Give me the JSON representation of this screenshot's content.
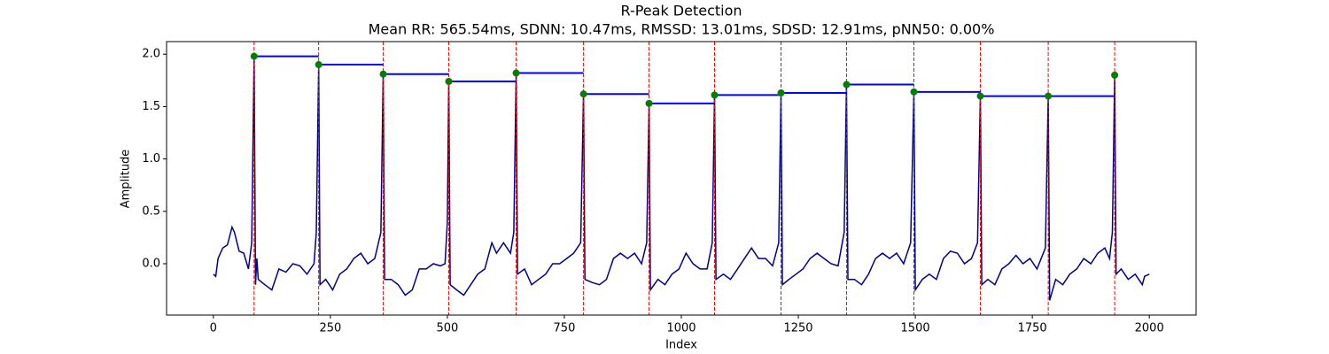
{
  "chart_data": {
    "type": "line",
    "title": "R-Peak Detection",
    "subtitle": "Mean RR: 565.54ms, SDNN: 10.47ms, RMSSD: 13.01ms, SDSD: 12.91ms, pNN50: 0.00%",
    "x_label": "Index",
    "y_label": "Amplitude",
    "xlim": [
      -100,
      2100
    ],
    "ylim": [
      -0.49,
      2.12
    ],
    "xticks": [
      0,
      250,
      500,
      750,
      1000,
      1250,
      1500,
      1750,
      2000
    ],
    "yticks": [
      {
        "value": 0,
        "label": "0.0"
      },
      {
        "value": 0.5,
        "label": "0.5"
      },
      {
        "value": 1,
        "label": "1.0"
      },
      {
        "value": 1.5,
        "label": "1.5"
      },
      {
        "value": 2,
        "label": "2.0"
      }
    ],
    "signal": {
      "color": "#00008b",
      "x": [
        0,
        5,
        10,
        20,
        30,
        40,
        45,
        55,
        65,
        75,
        82,
        87,
        90,
        93,
        96,
        110,
        125,
        140,
        155,
        170,
        185,
        200,
        215,
        220,
        225,
        228,
        240,
        255,
        270,
        285,
        300,
        315,
        330,
        345,
        358,
        363,
        366,
        380,
        395,
        410,
        425,
        440,
        455,
        470,
        485,
        495,
        500,
        503,
        506,
        520,
        535,
        550,
        565,
        580,
        595,
        605,
        620,
        635,
        642,
        647,
        650,
        665,
        680,
        695,
        710,
        725,
        740,
        755,
        770,
        785,
        791,
        794,
        810,
        825,
        840,
        855,
        870,
        885,
        900,
        915,
        926,
        931,
        934,
        950,
        965,
        980,
        995,
        1010,
        1025,
        1040,
        1055,
        1066,
        1071,
        1074,
        1090,
        1105,
        1120,
        1135,
        1150,
        1165,
        1180,
        1195,
        1208,
        1213,
        1216,
        1230,
        1245,
        1260,
        1275,
        1290,
        1305,
        1320,
        1335,
        1348,
        1353,
        1356,
        1370,
        1385,
        1400,
        1415,
        1430,
        1445,
        1460,
        1475,
        1490,
        1497,
        1500,
        1515,
        1530,
        1545,
        1560,
        1575,
        1590,
        1605,
        1620,
        1633,
        1639,
        1642,
        1655,
        1670,
        1685,
        1700,
        1715,
        1730,
        1745,
        1760,
        1778,
        1784,
        1787,
        1800,
        1815,
        1830,
        1845,
        1860,
        1875,
        1890,
        1905,
        1915,
        1921,
        1926,
        1929,
        1940,
        1955,
        1970,
        1985,
        1990,
        2000
      ],
      "values": [
        -0.1,
        -0.12,
        0.05,
        0.15,
        0.18,
        0.35,
        0.3,
        0.12,
        0.1,
        -0.05,
        0.2,
        1.98,
        -0.2,
        0.05,
        -0.15,
        -0.2,
        -0.25,
        -0.05,
        -0.08,
        0.0,
        -0.02,
        -0.1,
        0.0,
        0.3,
        1.9,
        -0.2,
        -0.15,
        -0.25,
        -0.1,
        -0.05,
        0.05,
        0.1,
        0.0,
        0.05,
        0.3,
        1.81,
        -0.15,
        -0.15,
        -0.2,
        -0.3,
        -0.25,
        -0.05,
        -0.05,
        0.0,
        -0.02,
        0.0,
        0.4,
        1.74,
        -0.2,
        -0.25,
        -0.3,
        -0.2,
        -0.1,
        -0.05,
        0.2,
        0.1,
        0.2,
        0.1,
        0.3,
        1.82,
        -0.1,
        -0.05,
        -0.2,
        -0.15,
        -0.1,
        0.0,
        0.0,
        0.05,
        0.1,
        0.2,
        1.62,
        -0.15,
        -0.18,
        -0.2,
        -0.15,
        0.05,
        0.1,
        0.05,
        0.1,
        0.0,
        0.2,
        1.53,
        -0.25,
        -0.15,
        -0.2,
        -0.1,
        -0.05,
        0.1,
        0.0,
        -0.05,
        -0.05,
        0.2,
        1.61,
        -0.15,
        -0.1,
        -0.15,
        -0.05,
        0.05,
        0.15,
        0.05,
        0.05,
        -0.02,
        0.2,
        1.63,
        -0.2,
        -0.15,
        -0.1,
        -0.05,
        0.05,
        0.1,
        0.05,
        0.0,
        -0.02,
        0.3,
        1.71,
        -0.15,
        -0.15,
        -0.2,
        -0.1,
        0.05,
        0.1,
        0.05,
        0.1,
        0.0,
        0.2,
        1.64,
        -0.25,
        -0.15,
        -0.1,
        -0.15,
        0.05,
        0.12,
        0.1,
        0.0,
        0.05,
        0.2,
        1.6,
        -0.2,
        -0.15,
        -0.2,
        -0.05,
        0.0,
        0.08,
        0.0,
        0.05,
        -0.05,
        0.15,
        1.6,
        -0.35,
        -0.15,
        -0.2,
        -0.1,
        -0.05,
        0.05,
        0.0,
        0.1,
        0.15,
        0.05,
        0.3,
        1.8,
        -0.1,
        -0.05,
        -0.15,
        -0.1,
        -0.2,
        -0.12,
        -0.1
      ]
    },
    "peaks": {
      "color": "green",
      "vline_color": "red",
      "rr_color": "blue",
      "x": [
        87,
        225,
        363,
        503,
        647,
        791,
        931,
        1071,
        1213,
        1353,
        1497,
        1639,
        1784,
        1926
      ],
      "values": [
        1.98,
        1.9,
        1.81,
        1.74,
        1.82,
        1.62,
        1.53,
        1.61,
        1.63,
        1.71,
        1.64,
        1.6,
        1.6,
        1.8
      ]
    }
  }
}
